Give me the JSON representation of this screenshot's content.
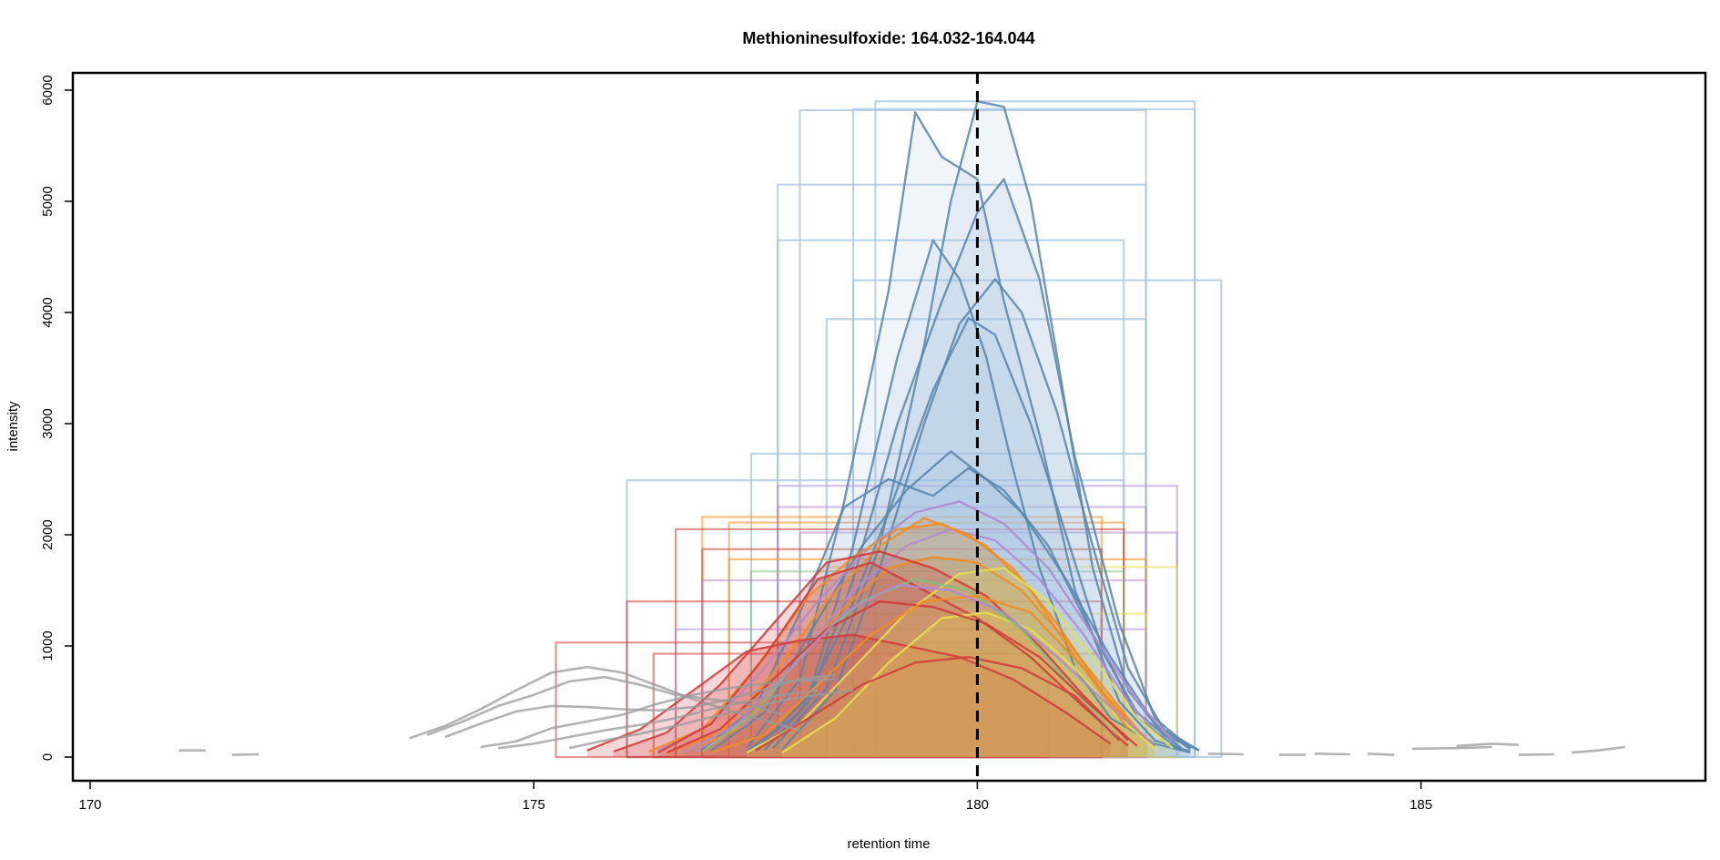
{
  "chart_data": {
    "type": "line",
    "title": "Methioninesulfoxide: 164.032-164.044",
    "xlabel": "retention time",
    "ylabel": "intensity",
    "xlim": [
      170,
      188.5
    ],
    "ylim": [
      -250,
      6150
    ],
    "x_ticks": [
      "170",
      "175",
      "180",
      "185"
    ],
    "y_ticks": [
      "0",
      "1000",
      "2000",
      "3000",
      "4000",
      "5000",
      "6000"
    ],
    "x_tick_values": [
      170,
      175,
      180,
      185
    ],
    "y_tick_values": [
      0,
      1000,
      2000,
      3000,
      4000,
      5000,
      6000
    ],
    "reference_line": {
      "x": 180.0,
      "style": "dashed",
      "color": "#000000"
    },
    "grid": false,
    "legend": "none",
    "colors": {
      "blue_line": "#5b86ac",
      "blue_fill": "#9fbfe0",
      "blue_box": "#a7c7de",
      "orange": "#f28c1e",
      "orange_fill": "#cf8e3c",
      "red": "#d23b3b",
      "yellow": "#e6e04a",
      "purple": "#b08ad0",
      "green": "#7fbf7f",
      "grey": "#999999"
    },
    "peak_boxes": [
      {
        "group": "blue",
        "x0": 178.0,
        "x1": 181.9,
        "height": 5820
      },
      {
        "group": "blue",
        "x0": 178.6,
        "x1": 182.45,
        "height": 5830
      },
      {
        "group": "blue",
        "x0": 178.85,
        "x1": 182.45,
        "height": 5900
      },
      {
        "group": "blue",
        "x0": 177.75,
        "x1": 181.9,
        "height": 5150
      },
      {
        "group": "blue",
        "x0": 177.75,
        "x1": 181.65,
        "height": 4650
      },
      {
        "group": "blue",
        "x0": 178.6,
        "x1": 182.75,
        "height": 4290
      },
      {
        "group": "blue",
        "x0": 178.3,
        "x1": 181.9,
        "height": 3940
      },
      {
        "group": "blue",
        "x0": 177.45,
        "x1": 181.9,
        "height": 2730
      },
      {
        "group": "blue",
        "x0": 176.05,
        "x1": 181.65,
        "height": 2490
      },
      {
        "group": "purple",
        "x0": 177.75,
        "x1": 182.25,
        "height": 2440
      },
      {
        "group": "purple",
        "x0": 177.75,
        "x1": 181.9,
        "height": 2250
      },
      {
        "group": "orange",
        "x0": 176.9,
        "x1": 181.4,
        "height": 2160
      },
      {
        "group": "orange",
        "x0": 177.2,
        "x1": 181.65,
        "height": 2110
      },
      {
        "group": "red",
        "x0": 176.6,
        "x1": 181.65,
        "height": 2050
      },
      {
        "group": "purple",
        "x0": 178.0,
        "x1": 182.25,
        "height": 2020
      },
      {
        "group": "red",
        "x0": 176.9,
        "x1": 181.4,
        "height": 1870
      },
      {
        "group": "orange",
        "x0": 177.2,
        "x1": 181.9,
        "height": 1780
      },
      {
        "group": "yellow",
        "x0": 178.3,
        "x1": 182.25,
        "height": 1710
      },
      {
        "group": "green",
        "x0": 177.45,
        "x1": 181.65,
        "height": 1670
      },
      {
        "group": "purple",
        "x0": 176.9,
        "x1": 181.9,
        "height": 1590
      },
      {
        "group": "red",
        "x0": 176.05,
        "x1": 181.4,
        "height": 1400
      },
      {
        "group": "yellow",
        "x0": 178.3,
        "x1": 181.9,
        "height": 1290
      },
      {
        "group": "purple",
        "x0": 176.6,
        "x1": 181.9,
        "height": 1150
      },
      {
        "group": "red",
        "x0": 175.25,
        "x1": 180.8,
        "height": 1030
      },
      {
        "group": "red",
        "x0": 176.35,
        "x1": 181.4,
        "height": 930
      }
    ],
    "series": [
      {
        "group": "blue",
        "fill": true,
        "x": [
          177.7,
          178.3,
          178.9,
          179.4,
          179.7,
          180.0,
          180.3,
          180.6,
          180.9,
          181.3,
          181.7,
          182.1,
          182.5
        ],
        "y": [
          80,
          620,
          1900,
          3700,
          5000,
          5900,
          5850,
          5000,
          3600,
          1700,
          600,
          200,
          60
        ]
      },
      {
        "group": "blue",
        "fill": true,
        "x": [
          177.4,
          178.0,
          178.5,
          179.0,
          179.3,
          179.6,
          180.0,
          180.3,
          180.7,
          181.1,
          181.6,
          182.0,
          182.4
        ],
        "y": [
          80,
          700,
          2300,
          4200,
          5800,
          5400,
          5200,
          4100,
          2900,
          1500,
          500,
          150,
          50
        ]
      },
      {
        "group": "blue",
        "fill": true,
        "x": [
          177.5,
          178.1,
          178.6,
          179.1,
          179.5,
          179.8,
          180.1,
          180.4,
          180.7,
          181.1,
          181.5,
          182.0,
          182.4
        ],
        "y": [
          60,
          550,
          1900,
          3600,
          4650,
          4300,
          3600,
          2600,
          1700,
          800,
          350,
          120,
          40
        ]
      },
      {
        "group": "blue",
        "fill": true,
        "x": [
          177.8,
          178.4,
          178.9,
          179.4,
          179.8,
          180.2,
          180.5,
          180.9,
          181.3,
          181.7,
          182.1,
          182.5
        ],
        "y": [
          70,
          600,
          1700,
          3000,
          3900,
          4300,
          4000,
          3100,
          1900,
          800,
          250,
          60
        ]
      },
      {
        "group": "blue",
        "fill": true,
        "x": [
          177.6,
          178.1,
          178.6,
          179.1,
          179.6,
          180.0,
          180.3,
          180.7,
          181.1,
          181.6,
          182.0,
          182.4
        ],
        "y": [
          60,
          500,
          1600,
          3000,
          4100,
          4900,
          5200,
          4300,
          2700,
          1200,
          350,
          80
        ]
      },
      {
        "group": "blue",
        "fill": true,
        "x": [
          177.4,
          178.0,
          178.5,
          179.0,
          179.5,
          179.9,
          180.2,
          180.6,
          181.0,
          181.4,
          181.8,
          182.3
        ],
        "y": [
          50,
          400,
          1200,
          2200,
          3300,
          3950,
          3800,
          3000,
          2000,
          1000,
          350,
          60
        ]
      },
      {
        "group": "blue",
        "fill": true,
        "x": [
          176.9,
          177.5,
          178.0,
          178.5,
          179.0,
          179.5,
          179.9,
          180.3,
          180.8,
          181.3,
          181.8,
          182.3
        ],
        "y": [
          70,
          450,
          1300,
          2250,
          2500,
          2350,
          2600,
          2400,
          1900,
          1100,
          400,
          80
        ]
      },
      {
        "group": "blue",
        "fill": true,
        "x": [
          177.0,
          177.6,
          178.1,
          178.7,
          179.2,
          179.7,
          180.1,
          180.5,
          181.0,
          181.5,
          182.0,
          182.4
        ],
        "y": [
          60,
          400,
          1100,
          1900,
          2400,
          2750,
          2500,
          2200,
          1600,
          900,
          300,
          70
        ]
      },
      {
        "group": "purple",
        "fill": false,
        "x": [
          176.4,
          177.0,
          177.6,
          178.2,
          178.8,
          179.3,
          179.8,
          180.3,
          180.8,
          181.3,
          181.8,
          182.2
        ],
        "y": [
          60,
          300,
          800,
          1400,
          1900,
          2200,
          2300,
          2100,
          1700,
          1100,
          500,
          150
        ]
      },
      {
        "group": "purple",
        "fill": false,
        "x": [
          176.8,
          177.4,
          178.0,
          178.6,
          179.2,
          179.7,
          180.2,
          180.7,
          181.2,
          181.7,
          182.1
        ],
        "y": [
          50,
          300,
          900,
          1500,
          1900,
          2050,
          1950,
          1600,
          1100,
          500,
          150
        ]
      },
      {
        "group": "orange",
        "fill": true,
        "x": [
          176.3,
          176.9,
          177.5,
          178.1,
          178.6,
          179.1,
          179.6,
          180.1,
          180.6,
          181.1,
          181.6,
          182.0
        ],
        "y": [
          50,
          250,
          800,
          1450,
          1800,
          2050,
          2100,
          1900,
          1500,
          900,
          400,
          100
        ]
      },
      {
        "group": "orange",
        "fill": true,
        "x": [
          176.5,
          177.1,
          177.7,
          178.3,
          178.9,
          179.4,
          179.9,
          180.4,
          180.9,
          181.4,
          181.9
        ],
        "y": [
          40,
          220,
          750,
          1400,
          1900,
          2150,
          2000,
          1700,
          1200,
          600,
          150
        ]
      },
      {
        "group": "orange",
        "fill": true,
        "x": [
          176.7,
          177.3,
          177.9,
          178.5,
          179.0,
          179.5,
          180.0,
          180.5,
          181.0,
          181.5,
          181.9
        ],
        "y": [
          40,
          250,
          800,
          1350,
          1700,
          1800,
          1750,
          1500,
          1050,
          550,
          150
        ]
      },
      {
        "group": "red",
        "fill": true,
        "x": [
          175.9,
          176.5,
          177.1,
          177.7,
          178.3,
          178.9,
          179.5,
          180.1,
          180.7,
          181.2,
          181.7
        ],
        "y": [
          50,
          220,
          650,
          1200,
          1750,
          1850,
          1700,
          1450,
          1000,
          550,
          150
        ]
      },
      {
        "group": "red",
        "fill": true,
        "x": [
          175.6,
          176.2,
          176.8,
          177.4,
          178.0,
          178.6,
          179.2,
          179.8,
          180.4,
          181.0,
          181.5
        ],
        "y": [
          60,
          250,
          600,
          950,
          1050,
          1100,
          1000,
          900,
          700,
          400,
          120
        ]
      },
      {
        "group": "red",
        "fill": true,
        "x": [
          176.4,
          177.0,
          177.6,
          178.2,
          178.8,
          179.4,
          180.0,
          180.6,
          181.2,
          181.7
        ],
        "y": [
          40,
          300,
          900,
          1600,
          1750,
          1500,
          1250,
          900,
          450,
          100
        ]
      },
      {
        "group": "yellow",
        "fill": true,
        "x": [
          177.4,
          178.0,
          178.6,
          179.2,
          179.8,
          180.3,
          180.8,
          181.3,
          181.8,
          182.2
        ],
        "y": [
          40,
          300,
          800,
          1300,
          1650,
          1700,
          1400,
          900,
          350,
          80
        ]
      },
      {
        "group": "yellow",
        "fill": true,
        "x": [
          177.8,
          178.4,
          179.0,
          179.6,
          180.1,
          180.6,
          181.1,
          181.6,
          182.0
        ],
        "y": [
          40,
          350,
          850,
          1250,
          1300,
          1150,
          800,
          350,
          80
        ]
      },
      {
        "group": "green",
        "fill": false,
        "x": [
          176.9,
          177.5,
          178.1,
          178.7,
          179.3,
          179.9,
          180.5,
          181.1,
          181.6
        ],
        "y": [
          50,
          400,
          1000,
          1400,
          1600,
          1500,
          1150,
          600,
          150
        ]
      },
      {
        "group": "red",
        "fill": false,
        "x": [
          176.5,
          177.1,
          177.7,
          178.3,
          178.9,
          179.5,
          180.1,
          180.7,
          181.3,
          181.8
        ],
        "y": [
          40,
          250,
          700,
          1150,
          1400,
          1350,
          1200,
          900,
          450,
          100
        ]
      },
      {
        "group": "orange",
        "fill": false,
        "x": [
          177.0,
          177.6,
          178.2,
          178.8,
          179.4,
          180.0,
          180.6,
          181.2,
          181.7
        ],
        "y": [
          40,
          200,
          650,
          1100,
          1400,
          1450,
          1300,
          800,
          250
        ]
      },
      {
        "group": "purple",
        "fill": false,
        "x": [
          176.7,
          177.3,
          177.9,
          178.5,
          179.1,
          179.7,
          180.3,
          180.9,
          181.5,
          182.0
        ],
        "y": [
          40,
          300,
          800,
          1300,
          1550,
          1500,
          1300,
          900,
          450,
          100
        ]
      },
      {
        "group": "red",
        "fill": false,
        "x": [
          177.5,
          178.1,
          178.7,
          179.3,
          179.9,
          180.5,
          181.1,
          181.6
        ],
        "y": [
          60,
          350,
          650,
          850,
          900,
          800,
          550,
          150
        ]
      },
      {
        "group": "grey",
        "fill": false,
        "x": [
          173.6,
          174.0,
          174.4,
          174.8,
          175.2,
          175.6,
          176.0,
          176.4,
          176.8,
          177.2,
          177.6,
          178.0
        ],
        "y": [
          170,
          280,
          430,
          600,
          760,
          810,
          760,
          640,
          520,
          420,
          330,
          240
        ]
      },
      {
        "group": "grey",
        "fill": false,
        "x": [
          173.8,
          174.2,
          174.6,
          175.0,
          175.4,
          175.8,
          176.2,
          176.6,
          177.0,
          177.4,
          177.8
        ],
        "y": [
          200,
          320,
          460,
          560,
          680,
          720,
          650,
          560,
          520,
          480,
          380
        ]
      },
      {
        "group": "grey",
        "fill": false,
        "x": [
          174.0,
          174.4,
          174.8,
          175.2,
          175.6,
          176.0,
          176.4,
          176.8,
          177.2,
          177.6,
          178.0,
          178.4
        ],
        "y": [
          180,
          300,
          410,
          460,
          450,
          430,
          420,
          450,
          520,
          610,
          700,
          740
        ]
      },
      {
        "group": "grey",
        "fill": false,
        "x": [
          174.4,
          174.8,
          175.2,
          175.6,
          176.0,
          176.4,
          176.8,
          177.2,
          177.6,
          178.0,
          178.4
        ],
        "y": [
          90,
          140,
          260,
          320,
          380,
          480,
          560,
          620,
          660,
          690,
          700
        ]
      },
      {
        "group": "grey",
        "fill": false,
        "x": [
          174.6,
          175.0,
          175.4,
          175.8,
          176.2,
          176.6,
          177.0,
          177.4,
          177.8,
          178.2
        ],
        "y": [
          80,
          120,
          180,
          240,
          290,
          350,
          430,
          500,
          560,
          600
        ]
      },
      {
        "group": "grey",
        "fill": false,
        "x": [
          175.4,
          175.8,
          176.2,
          176.6,
          177.0,
          177.4,
          177.8,
          178.2,
          178.6
        ],
        "y": [
          80,
          150,
          210,
          280,
          360,
          430,
          510,
          560,
          600
        ]
      },
      {
        "group": "grey",
        "fill": false,
        "x": [
          171.0,
          171.3
        ],
        "y": [
          60,
          60
        ]
      },
      {
        "group": "grey",
        "fill": false,
        "x": [
          171.6,
          171.9
        ],
        "y": [
          20,
          25
        ]
      },
      {
        "group": "grey",
        "fill": false,
        "x": [
          182.6,
          183.0
        ],
        "y": [
          30,
          25
        ]
      },
      {
        "group": "grey",
        "fill": false,
        "x": [
          183.4,
          183.7
        ],
        "y": [
          20,
          20
        ]
      },
      {
        "group": "grey",
        "fill": false,
        "x": [
          183.8,
          184.2
        ],
        "y": [
          30,
          25
        ]
      },
      {
        "group": "grey",
        "fill": false,
        "x": [
          184.4,
          184.7
        ],
        "y": [
          30,
          20
        ]
      },
      {
        "group": "grey",
        "fill": false,
        "x": [
          184.9,
          185.4,
          185.8
        ],
        "y": [
          75,
          80,
          90
        ]
      },
      {
        "group": "grey",
        "fill": false,
        "x": [
          185.4,
          185.8,
          186.1
        ],
        "y": [
          100,
          120,
          110
        ]
      },
      {
        "group": "grey",
        "fill": false,
        "x": [
          186.1,
          186.5
        ],
        "y": [
          20,
          25
        ]
      },
      {
        "group": "grey",
        "fill": false,
        "x": [
          186.7,
          187.0,
          187.3
        ],
        "y": [
          40,
          60,
          90
        ]
      }
    ]
  }
}
